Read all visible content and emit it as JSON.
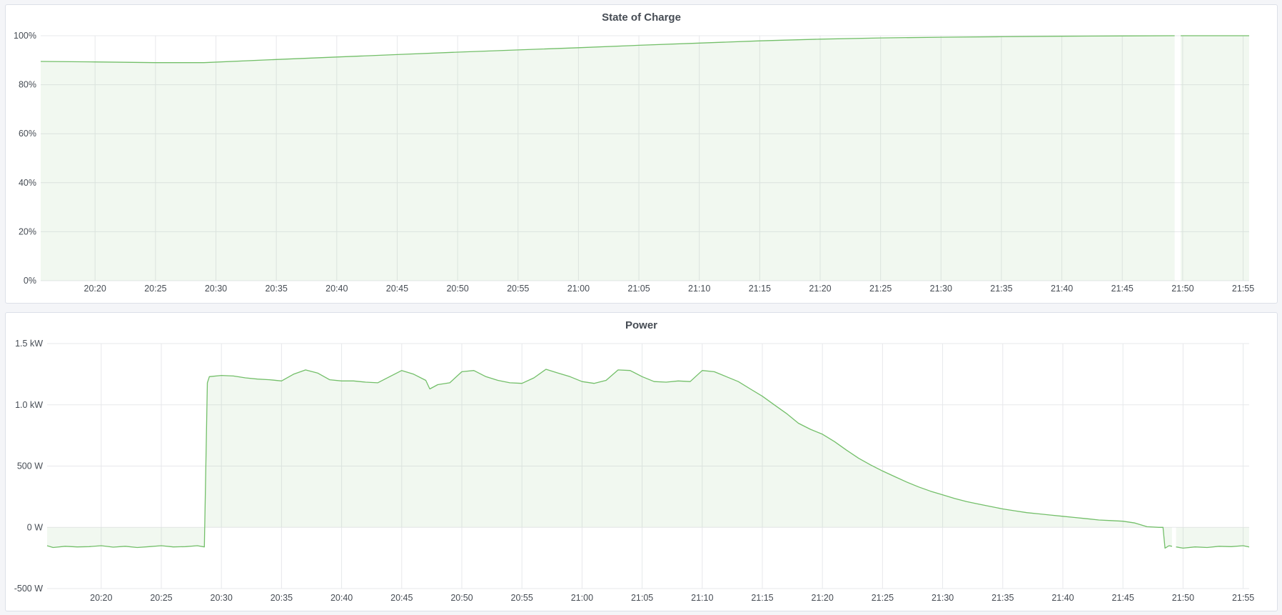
{
  "colors": {
    "line": "#73bf69",
    "fill": "rgba(115,191,105,0.10)",
    "grid": "#e7e8eb",
    "background": "#f4f5f8"
  },
  "chart_data": [
    {
      "type": "area",
      "title": "State of Charge",
      "x_range": [
        "20:15:30",
        "21:55:30"
      ],
      "x_ticks": [
        "20:20",
        "20:25",
        "20:30",
        "20:35",
        "20:40",
        "20:45",
        "20:50",
        "20:55",
        "21:00",
        "21:05",
        "21:10",
        "21:15",
        "21:20",
        "21:25",
        "21:30",
        "21:35",
        "21:40",
        "21:45",
        "21:50",
        "21:55"
      ],
      "ylim": [
        0,
        100
      ],
      "y_ticks": [
        0,
        20,
        40,
        60,
        80,
        100
      ],
      "y_tick_labels": [
        "0%",
        "20%",
        "40%",
        "60%",
        "80%",
        "100%"
      ],
      "grid": true,
      "points": [
        [
          "20:15:30",
          89.5
        ],
        [
          "20:20",
          89.3
        ],
        [
          "20:25",
          89.0
        ],
        [
          "20:29",
          89.0
        ],
        [
          "20:35",
          90.3
        ],
        [
          "20:40",
          91.3
        ],
        [
          "20:45",
          92.3
        ],
        [
          "20:50",
          93.3
        ],
        [
          "20:55",
          94.2
        ],
        [
          "21:00",
          95.1
        ],
        [
          "21:05",
          96.1
        ],
        [
          "21:10",
          97.0
        ],
        [
          "21:15",
          97.9
        ],
        [
          "21:20",
          98.6
        ],
        [
          "21:25",
          99.1
        ],
        [
          "21:30",
          99.4
        ],
        [
          "21:35",
          99.6
        ],
        [
          "21:40",
          99.8
        ],
        [
          "21:45",
          99.9
        ],
        [
          "21:49:20",
          100
        ],
        [
          "21:49:30",
          null
        ],
        [
          "21:49:50",
          100
        ],
        [
          "21:55:30",
          100
        ]
      ]
    },
    {
      "type": "area",
      "title": "Power",
      "x_range": [
        "20:15:30",
        "21:55:30"
      ],
      "x_ticks": [
        "20:20",
        "20:25",
        "20:30",
        "20:35",
        "20:40",
        "20:45",
        "20:50",
        "20:55",
        "21:00",
        "21:05",
        "21:10",
        "21:15",
        "21:20",
        "21:25",
        "21:30",
        "21:35",
        "21:40",
        "21:45",
        "21:50",
        "21:55"
      ],
      "ylim": [
        -500,
        1500
      ],
      "y_ticks": [
        -500,
        0,
        500,
        1000,
        1500
      ],
      "y_tick_labels": [
        "-500 W",
        "0 W",
        "500 W",
        "1.0 kW",
        "1.5 kW"
      ],
      "unit": "W",
      "grid": true,
      "points": [
        [
          "20:15:30",
          -150
        ],
        [
          "20:16",
          -165
        ],
        [
          "20:17",
          -155
        ],
        [
          "20:18",
          -160
        ],
        [
          "20:19",
          -158
        ],
        [
          "20:20",
          -150
        ],
        [
          "20:21",
          -162
        ],
        [
          "20:22",
          -155
        ],
        [
          "20:23",
          -165
        ],
        [
          "20:24",
          -158
        ],
        [
          "20:25",
          -150
        ],
        [
          "20:26",
          -160
        ],
        [
          "20:27",
          -158
        ],
        [
          "20:28",
          -150
        ],
        [
          "20:28:35",
          -160
        ],
        [
          "20:28:50",
          1180
        ],
        [
          "20:29",
          1230
        ],
        [
          "20:30",
          1240
        ],
        [
          "20:31",
          1235
        ],
        [
          "20:32",
          1220
        ],
        [
          "20:33",
          1210
        ],
        [
          "20:34",
          1205
        ],
        [
          "20:35",
          1195
        ],
        [
          "20:36",
          1250
        ],
        [
          "20:37",
          1285
        ],
        [
          "20:38",
          1260
        ],
        [
          "20:39",
          1205
        ],
        [
          "20:40",
          1195
        ],
        [
          "20:41",
          1195
        ],
        [
          "20:42",
          1185
        ],
        [
          "20:43",
          1180
        ],
        [
          "20:44",
          1230
        ],
        [
          "20:45",
          1280
        ],
        [
          "20:46",
          1250
        ],
        [
          "20:47",
          1200
        ],
        [
          "20:47:20",
          1130
        ],
        [
          "20:48",
          1165
        ],
        [
          "20:49",
          1180
        ],
        [
          "20:50",
          1270
        ],
        [
          "20:51",
          1280
        ],
        [
          "20:52",
          1230
        ],
        [
          "20:53",
          1200
        ],
        [
          "20:54",
          1180
        ],
        [
          "20:55",
          1175
        ],
        [
          "20:56",
          1220
        ],
        [
          "20:57",
          1290
        ],
        [
          "20:58",
          1260
        ],
        [
          "20:59",
          1230
        ],
        [
          "21:00",
          1190
        ],
        [
          "21:01",
          1175
        ],
        [
          "21:02",
          1200
        ],
        [
          "21:03",
          1285
        ],
        [
          "21:04",
          1280
        ],
        [
          "21:05",
          1230
        ],
        [
          "21:06",
          1190
        ],
        [
          "21:07",
          1185
        ],
        [
          "21:08",
          1195
        ],
        [
          "21:09",
          1190
        ],
        [
          "21:10",
          1280
        ],
        [
          "21:11",
          1270
        ],
        [
          "21:12",
          1230
        ],
        [
          "21:13",
          1190
        ],
        [
          "21:14",
          1130
        ],
        [
          "21:15",
          1070
        ],
        [
          "21:16",
          1000
        ],
        [
          "21:17",
          930
        ],
        [
          "21:18",
          850
        ],
        [
          "21:19",
          800
        ],
        [
          "21:20",
          760
        ],
        [
          "21:21",
          700
        ],
        [
          "21:22",
          630
        ],
        [
          "21:23",
          565
        ],
        [
          "21:24",
          510
        ],
        [
          "21:25",
          460
        ],
        [
          "21:26",
          415
        ],
        [
          "21:27",
          370
        ],
        [
          "21:28",
          330
        ],
        [
          "21:29",
          295
        ],
        [
          "21:30",
          265
        ],
        [
          "21:31",
          235
        ],
        [
          "21:32",
          210
        ],
        [
          "21:33",
          190
        ],
        [
          "21:34",
          170
        ],
        [
          "21:35",
          150
        ],
        [
          "21:36",
          135
        ],
        [
          "21:37",
          120
        ],
        [
          "21:38",
          110
        ],
        [
          "21:39",
          100
        ],
        [
          "21:40",
          90
        ],
        [
          "21:41",
          80
        ],
        [
          "21:42",
          70
        ],
        [
          "21:43",
          60
        ],
        [
          "21:44",
          55
        ],
        [
          "21:45",
          50
        ],
        [
          "21:46",
          35
        ],
        [
          "21:47",
          5
        ],
        [
          "21:48",
          0
        ],
        [
          "21:48:20",
          0
        ],
        [
          "21:48:30",
          -170
        ],
        [
          "21:48:50",
          -150
        ],
        [
          "21:49:05",
          -155
        ],
        [
          "21:49:15",
          null
        ],
        [
          "21:49:25",
          -160
        ],
        [
          "21:50",
          -170
        ],
        [
          "21:51",
          -160
        ],
        [
          "21:52",
          -165
        ],
        [
          "21:53",
          -155
        ],
        [
          "21:54",
          -158
        ],
        [
          "21:55",
          -150
        ],
        [
          "21:55:30",
          -160
        ]
      ]
    }
  ]
}
